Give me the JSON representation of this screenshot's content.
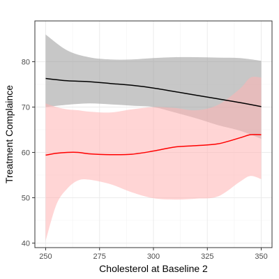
{
  "chart_data": {
    "type": "line",
    "xlabel": "Cholesterol at Baseline 2",
    "ylabel": "Treatment Complaince",
    "xlim": [
      245,
      355
    ],
    "ylim": [
      39,
      89
    ],
    "x_ticks": [
      250,
      275,
      300,
      325,
      350
    ],
    "y_ticks": [
      40,
      50,
      60,
      70,
      80
    ],
    "grid": true,
    "legend": "none",
    "series": [
      {
        "color": "#000000",
        "band_color": "#999999",
        "x": [
          250,
          260,
          270,
          280,
          290,
          300,
          310,
          320,
          330,
          340,
          350
        ],
        "y": [
          76.3,
          75.8,
          75.6,
          75.2,
          74.8,
          74.2,
          73.4,
          72.6,
          71.8,
          71.0,
          70.1
        ],
        "lower": [
          70.0,
          70.5,
          70.8,
          70.6,
          70.3,
          70.0,
          68.8,
          67.5,
          66.0,
          64.8,
          63.0
        ],
        "upper": [
          86.0,
          82.5,
          81.0,
          80.5,
          80.5,
          80.8,
          81.0,
          81.0,
          80.9,
          80.8,
          80.2
        ]
      },
      {
        "color": "#ff0000",
        "band_color": "#ffb3b3",
        "x": [
          250,
          255,
          260,
          265,
          270,
          280,
          290,
          300,
          310,
          320,
          330,
          340,
          345,
          350
        ],
        "y": [
          59.4,
          59.8,
          60.0,
          60.0,
          59.7,
          59.5,
          59.6,
          60.3,
          61.2,
          61.5,
          61.9,
          63.2,
          63.9,
          63.9
        ],
        "lower": [
          40.5,
          48.5,
          52.0,
          53.8,
          54.0,
          53.0,
          51.2,
          49.9,
          49.6,
          49.8,
          50.3,
          53.5,
          54.8,
          54.1
        ],
        "upper": [
          70.8,
          70.0,
          69.5,
          69.3,
          69.0,
          68.8,
          69.5,
          70.0,
          69.8,
          69.3,
          70.5,
          74.0,
          76.5,
          76.5
        ]
      }
    ]
  }
}
